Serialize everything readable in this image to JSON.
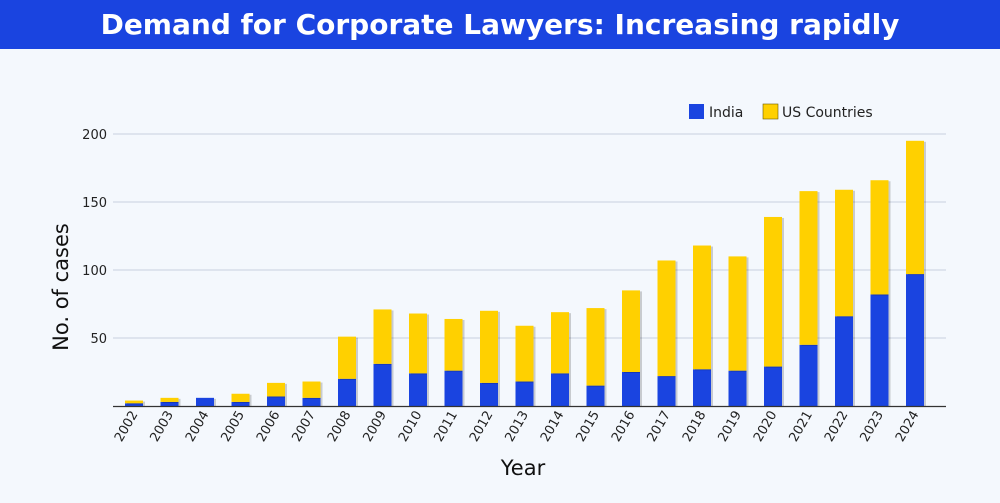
{
  "banner": {
    "title": "Demand for Corporate Lawyers: Increasing rapidly"
  },
  "chart_data": {
    "type": "bar",
    "stacked": true,
    "title": "Demand for Corporate Lawyers: Increasing rapidly",
    "xlabel": "Year",
    "ylabel": "No. of cases",
    "categories": [
      "2002",
      "2003",
      "2004",
      "2005",
      "2006",
      "2007",
      "2008",
      "2009",
      "2010",
      "2011",
      "2012",
      "2013",
      "2014",
      "2015",
      "2016",
      "2017",
      "2018",
      "2019",
      "2020",
      "2021",
      "2022",
      "2023",
      "2024"
    ],
    "series": [
      {
        "name": "India",
        "color": "#1a44e0",
        "values": [
          2,
          3,
          6,
          3,
          7,
          6,
          20,
          31,
          24,
          26,
          17,
          18,
          24,
          15,
          25,
          22,
          27,
          26,
          29,
          45,
          66,
          82,
          97
        ]
      },
      {
        "name": "US Countries",
        "color": "#ffd000",
        "values": [
          2,
          3,
          0,
          6,
          10,
          12,
          31,
          40,
          44,
          38,
          53,
          41,
          45,
          57,
          60,
          85,
          91,
          84,
          110,
          113,
          93,
          84,
          98
        ]
      }
    ],
    "ylim": [
      0,
      200
    ],
    "yticks": [
      50,
      100,
      150,
      200
    ],
    "grid": true,
    "legend_position": "top-right"
  }
}
